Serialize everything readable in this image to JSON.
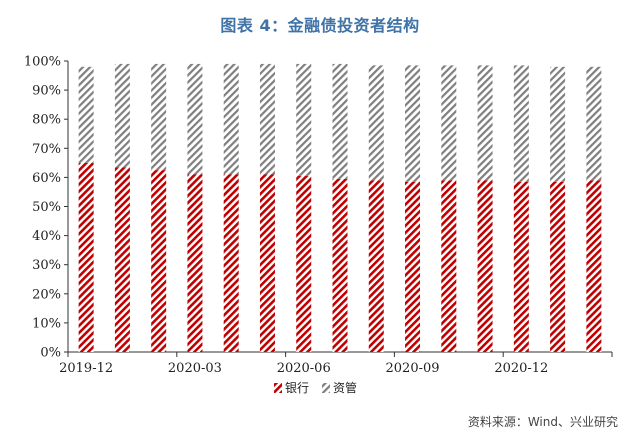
{
  "title": "图表 4：金融债投资者结构",
  "source": "资料来源：Wind、兴业研究",
  "colors": {
    "bank": "#c00000",
    "asset_mgmt": "#7f7f7f",
    "title": "#3f73a8"
  },
  "chart_data": {
    "type": "bar",
    "stacked": true,
    "categories": [
      "2019-12",
      "2020-01",
      "2020-02",
      "2020-03",
      "2020-04",
      "2020-05",
      "2020-06",
      "2020-07",
      "2020-08",
      "2020-09",
      "2020-10",
      "2020-11",
      "2020-12",
      "2021-01",
      "2021-02"
    ],
    "x_tick_labels": [
      "2019-12",
      "2020-03",
      "2020-06",
      "2020-09",
      "2020-12"
    ],
    "series": [
      {
        "name": "银行",
        "values": [
          65.0,
          63.5,
          62.5,
          61.0,
          61.0,
          61.0,
          60.5,
          59.5,
          59.0,
          58.5,
          59.0,
          59.0,
          58.5,
          58.5,
          59.0
        ]
      },
      {
        "name": "资管",
        "values": [
          33.0,
          35.5,
          36.5,
          38.0,
          38.0,
          38.0,
          38.5,
          39.5,
          39.5,
          40.0,
          39.5,
          39.5,
          40.0,
          39.5,
          39.0
        ]
      }
    ],
    "y_ticks": [
      "0%",
      "10%",
      "20%",
      "30%",
      "40%",
      "50%",
      "60%",
      "70%",
      "80%",
      "90%",
      "100%"
    ],
    "ylim": [
      0,
      100
    ],
    "legend_position": "bottom",
    "grid": false
  }
}
